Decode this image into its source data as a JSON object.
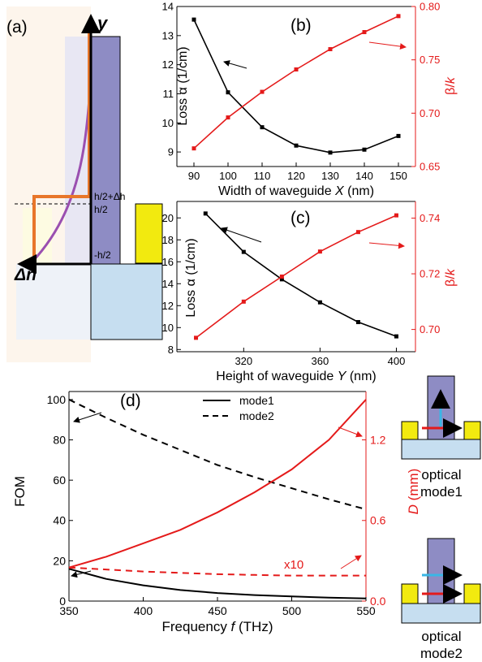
{
  "colors": {
    "black": "#000000",
    "red": "#e41a1a",
    "orange": "#e8762a",
    "purple": "#9a4fb0",
    "slab": "#8e8cc4",
    "slab_light": "#e4e4f2",
    "substrate": "#c6def0",
    "gold": "#f2ea0f",
    "panel_bg": "#fdf5ec"
  },
  "panel_a": {
    "label": "(a)",
    "y_axis": "y",
    "x_axis": "Δn",
    "level1": "h/2+Δh",
    "level2": "h/2",
    "level3": "-h/2"
  },
  "inset": {
    "label1": "optical",
    "label1b": "mode1",
    "label2": "optical",
    "label2b": "mode2"
  },
  "chart_data": [
    {
      "id": "b",
      "panel_label": "(b)",
      "type": "line",
      "xlabel": "Width of waveguide X (nm)",
      "ylabel_left": "Loss α (1/cm)",
      "ylabel_right": "β/k",
      "xlim": [
        85,
        155
      ],
      "xticks": [
        90,
        100,
        110,
        120,
        130,
        140,
        150
      ],
      "ylim_left": [
        8.5,
        14
      ],
      "yticks_left": [
        9,
        10,
        11,
        12,
        13,
        14
      ],
      "ylim_right": [
        0.65,
        0.8
      ],
      "yticks_right": [
        "0.65",
        "0.70",
        "0.75",
        "0.80"
      ],
      "series": [
        {
          "axis": "left",
          "color": "black",
          "x": [
            90,
            100,
            110,
            120,
            130,
            140,
            150
          ],
          "y": [
            13.55,
            11.05,
            9.85,
            9.22,
            8.98,
            9.08,
            9.55
          ]
        },
        {
          "axis": "right",
          "color": "red",
          "x": [
            90,
            100,
            110,
            120,
            130,
            140,
            150
          ],
          "y": [
            0.667,
            0.696,
            0.72,
            0.741,
            0.76,
            0.776,
            0.791
          ]
        }
      ]
    },
    {
      "id": "c",
      "panel_label": "(c)",
      "type": "line",
      "xlabel": "Height of waveguide Y (nm)",
      "ylabel_left": "Loss α (1/cm)",
      "ylabel_right": "β/k",
      "xlim": [
        285,
        410
      ],
      "xticks": [
        320,
        360,
        400
      ],
      "ylim_left": [
        7.8,
        21.5
      ],
      "yticks_left": [
        8,
        10,
        12,
        14,
        16,
        18,
        20
      ],
      "ylim_right": [
        0.692,
        0.746
      ],
      "yticks_right": [
        "0.70",
        "0.72",
        "0.74"
      ],
      "series": [
        {
          "axis": "left",
          "color": "black",
          "x": [
            300,
            320,
            340,
            360,
            380,
            400
          ],
          "y": [
            20.4,
            16.9,
            14.4,
            12.3,
            10.5,
            9.2
          ]
        },
        {
          "axis": "right",
          "color": "red",
          "x": [
            295,
            320,
            340,
            360,
            380,
            400
          ],
          "y": [
            0.697,
            0.71,
            0.719,
            0.728,
            0.735,
            0.741
          ]
        }
      ]
    },
    {
      "id": "d",
      "panel_label": "(d)",
      "type": "line",
      "xlabel": "Frequency f (THz)",
      "ylabel_left": "FOM",
      "ylabel_right": "D (mm)",
      "xlim": [
        350,
        550
      ],
      "xticks": [
        350,
        400,
        450,
        500,
        550
      ],
      "ylim_left": [
        0,
        104
      ],
      "yticks_left": [
        0,
        20,
        40,
        60,
        80,
        100
      ],
      "ylim_right": [
        0,
        1.56
      ],
      "yticks_right": [
        "0.0",
        "0.6",
        "1.2"
      ],
      "legend": [
        "mode1",
        "mode2"
      ],
      "annotation": "x10",
      "series": [
        {
          "name": "mode1",
          "axis": "left",
          "color": "black",
          "dash": "solid",
          "x": [
            350,
            375,
            400,
            425,
            450,
            475,
            500,
            525,
            550
          ],
          "y": [
            16,
            11,
            7.8,
            5.5,
            4,
            3,
            2.3,
            1.7,
            1.3
          ]
        },
        {
          "name": "mode2",
          "axis": "left",
          "color": "black",
          "dash": "dashed",
          "x": [
            350,
            375,
            400,
            425,
            450,
            475,
            500,
            525,
            550
          ],
          "y": [
            100,
            91,
            82.5,
            75,
            67.5,
            61.5,
            56,
            50.5,
            45.5
          ]
        },
        {
          "axis": "right",
          "color": "red",
          "dash": "solid",
          "x": [
            350,
            375,
            400,
            425,
            450,
            475,
            500,
            525,
            550
          ],
          "y": [
            0.25,
            0.33,
            0.43,
            0.53,
            0.66,
            0.81,
            0.98,
            1.2,
            1.5
          ]
        },
        {
          "axis": "right",
          "color": "red",
          "dash": "dashed",
          "x": [
            350,
            375,
            400,
            425,
            450,
            475,
            500,
            525,
            550
          ],
          "y": [
            0.25,
            0.235,
            0.22,
            0.21,
            0.2,
            0.195,
            0.19,
            0.19,
            0.19
          ]
        }
      ]
    }
  ]
}
